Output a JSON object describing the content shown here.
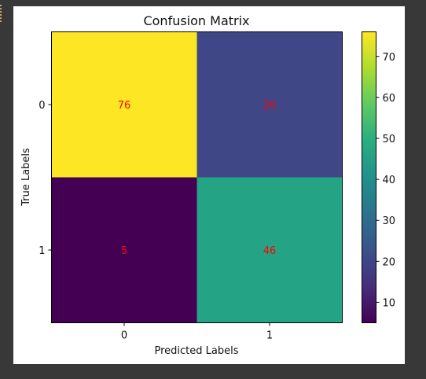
{
  "chart_data": {
    "type": "heatmap",
    "title": "Confusion Matrix",
    "xlabel": "Predicted Labels",
    "ylabel": "True Labels",
    "x_categories": [
      "0",
      "1"
    ],
    "y_categories": [
      "0",
      "1"
    ],
    "values": [
      [
        76,
        20
      ],
      [
        5,
        46
      ]
    ],
    "colormap": "viridis",
    "colorbar": {
      "min": 5,
      "max": 76,
      "ticks": [
        10,
        20,
        30,
        40,
        50,
        60,
        70
      ]
    },
    "cell_label_color": "#ff0000"
  }
}
